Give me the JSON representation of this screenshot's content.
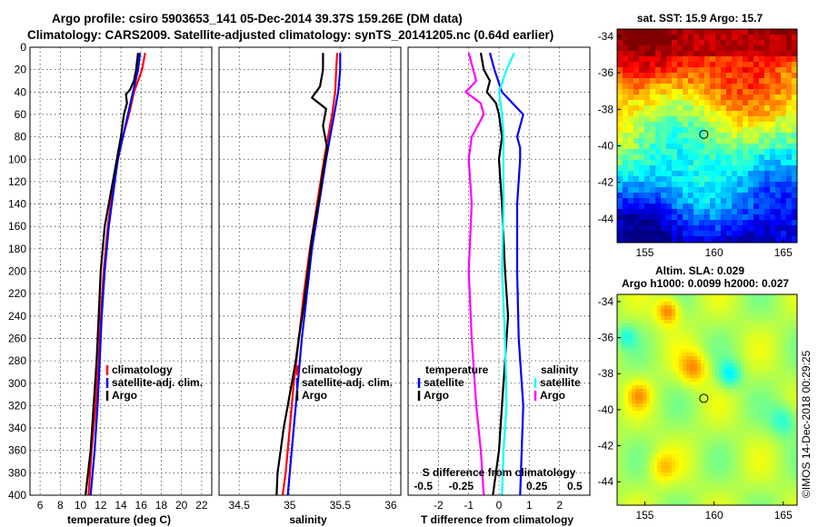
{
  "title": {
    "line1": "Argo profile: csiro 5903653_141 05-Dec-2014 39.37S 159.26E (DM data)",
    "line2": "Climatology: CARS2009. Satellite-adjusted climatology: synTS_20141205.nc (0.64d earlier)"
  },
  "watermark": "©IMOS 14-Dec-2018 00:29:25",
  "colors": {
    "climatology": "#ff0000",
    "satellite": "#0000ff",
    "argo": "#000000",
    "sat_s": "#00ffff",
    "argo_s": "#ff00ff"
  },
  "chart_data": [
    {
      "type": "line",
      "id": "temperature",
      "xlabel": "temperature (deg C)",
      "ylabel": "",
      "xlim": [
        5,
        23
      ],
      "ylim": [
        0,
        400
      ],
      "yreversed": true,
      "xticks": [
        6,
        8,
        10,
        12,
        14,
        16,
        18,
        20,
        22
      ],
      "xtick_labels": [
        "6",
        "8",
        "10",
        "12",
        "14",
        "16",
        "18",
        "20",
        "22"
      ],
      "yticks": [
        0,
        20,
        40,
        60,
        80,
        100,
        120,
        140,
        160,
        180,
        200,
        220,
        240,
        260,
        280,
        300,
        320,
        340,
        360,
        380,
        400
      ],
      "ytick_labels": [
        "0",
        "20",
        "40",
        "60",
        "80",
        "100",
        "120",
        "140",
        "160",
        "180",
        "200",
        "220",
        "240",
        "260",
        "280",
        "300",
        "320",
        "340",
        "360",
        "380",
        "400"
      ],
      "grid": true,
      "legend": {
        "placement": "lower-middle",
        "entries": [
          "climatology",
          "satellite-adj. clim.",
          "Argo"
        ]
      },
      "series": [
        {
          "name": "climatology",
          "color": "#ff0000",
          "depth": [
            5,
            20,
            40,
            60,
            80,
            100,
            120,
            140,
            160,
            200,
            240,
            280,
            320,
            360,
            400
          ],
          "values": [
            16.4,
            16.1,
            15.3,
            14.8,
            14.2,
            13.7,
            13.3,
            13.0,
            12.7,
            12.3,
            12.0,
            11.8,
            11.5,
            11.1,
            10.8
          ]
        },
        {
          "name": "satellite-adj. clim.",
          "color": "#0000ff",
          "depth": [
            5,
            20,
            40,
            60,
            80,
            100,
            120,
            140,
            160,
            200,
            240,
            280,
            320,
            360,
            400
          ],
          "values": [
            15.9,
            15.7,
            15.2,
            14.7,
            14.2,
            13.7,
            13.4,
            13.1,
            12.8,
            12.4,
            12.1,
            11.9,
            11.7,
            11.4,
            11.0
          ]
        },
        {
          "name": "Argo",
          "color": "#000000",
          "depth": [
            5,
            20,
            30,
            38,
            42,
            50,
            60,
            80,
            100,
            120,
            140,
            160,
            200,
            240,
            280,
            320,
            360,
            400
          ],
          "values": [
            15.7,
            15.5,
            15.3,
            14.9,
            14.5,
            14.6,
            14.3,
            14.0,
            13.6,
            13.2,
            12.8,
            12.4,
            12.0,
            11.8,
            11.6,
            11.3,
            11.0,
            10.5
          ]
        }
      ]
    },
    {
      "type": "line",
      "id": "salinity",
      "xlabel": "salinity",
      "ylabel": "",
      "xlim": [
        34.3,
        36.1
      ],
      "ylim": [
        0,
        400
      ],
      "yreversed": true,
      "xticks": [
        34.5,
        35,
        35.5,
        36
      ],
      "xtick_labels": [
        "34.5",
        "35",
        "35.5",
        "36"
      ],
      "grid": true,
      "legend": {
        "placement": "lower-middle",
        "entries": [
          "climatology",
          "satellite-adj. clim.",
          "Argo"
        ]
      },
      "series": [
        {
          "name": "climatology",
          "color": "#ff0000",
          "depth": [
            5,
            20,
            40,
            60,
            80,
            100,
            140,
            180,
            220,
            260,
            300,
            340,
            380,
            400
          ],
          "values": [
            35.47,
            35.46,
            35.45,
            35.42,
            35.38,
            35.34,
            35.27,
            35.2,
            35.14,
            35.09,
            35.04,
            35.0,
            34.96,
            34.93
          ]
        },
        {
          "name": "satellite-adj. clim.",
          "color": "#0000ff",
          "depth": [
            5,
            20,
            40,
            60,
            80,
            100,
            140,
            180,
            220,
            260,
            300,
            340,
            380,
            400
          ],
          "values": [
            35.5,
            35.5,
            35.48,
            35.44,
            35.4,
            35.36,
            35.29,
            35.22,
            35.17,
            35.12,
            35.08,
            35.04,
            35.0,
            34.98
          ]
        },
        {
          "name": "Argo",
          "color": "#000000",
          "depth": [
            5,
            20,
            35,
            45,
            55,
            70,
            90,
            110,
            130,
            150,
            170,
            200,
            230,
            260,
            280,
            300,
            320,
            340,
            360,
            380,
            400
          ],
          "values": [
            35.33,
            35.33,
            35.3,
            35.22,
            35.36,
            35.33,
            35.37,
            35.33,
            35.3,
            35.26,
            35.22,
            35.18,
            35.14,
            35.09,
            35.06,
            35.02,
            34.98,
            34.94,
            34.91,
            34.88,
            34.87
          ]
        }
      ]
    },
    {
      "type": "line",
      "id": "difference",
      "xlabel": "T difference from climatology",
      "xlabel_top": "S difference from climatology",
      "xlim": [
        -3,
        3
      ],
      "ylim": [
        0,
        400
      ],
      "yreversed": true,
      "xticks": [
        -2,
        -1,
        0,
        1,
        2
      ],
      "xtick_labels": [
        "-2",
        "-1",
        "0",
        "1",
        "2"
      ],
      "s_xlim": [
        -0.6,
        0.6
      ],
      "s_xticks": [
        -0.5,
        -0.25,
        0.25,
        0.5
      ],
      "s_xtick_labels": [
        "-0.5",
        "-0.25",
        "0.25",
        "0.5"
      ],
      "grid": true,
      "legend_t": {
        "placement": "lower-left",
        "header": "temperature",
        "entries": [
          "satellite",
          "Argo"
        ]
      },
      "legend_s": {
        "placement": "lower-right",
        "header": "salinity",
        "entries": [
          "satellite",
          "Argo"
        ]
      },
      "series": [
        {
          "name": "temperature satellite",
          "color": "#0000ff",
          "depth": [
            5,
            20,
            40,
            60,
            80,
            90,
            100,
            140,
            200,
            260,
            320,
            360,
            400
          ],
          "values": [
            -0.3,
            -0.15,
            0.1,
            0.8,
            0.6,
            0.7,
            0.7,
            0.6,
            0.6,
            0.65,
            0.8,
            0.75,
            0.7
          ]
        },
        {
          "name": "temperature Argo",
          "color": "#000000",
          "depth": [
            5,
            20,
            30,
            40,
            50,
            60,
            80,
            100,
            140,
            200,
            240,
            280,
            320,
            360,
            400
          ],
          "values": [
            -0.6,
            -0.5,
            -0.3,
            -0.4,
            -0.1,
            0.0,
            0.1,
            0.0,
            0.1,
            0.2,
            0.3,
            0.2,
            0.1,
            0.0,
            -0.2
          ]
        },
        {
          "name": "salinity satellite",
          "color": "#00ffff",
          "depth": [
            5,
            20,
            40,
            60,
            80,
            100,
            140,
            200,
            260,
            320,
            360,
            400
          ],
          "values": [
            0.1,
            0.05,
            0.0,
            0.02,
            0.03,
            0.03,
            0.03,
            0.02,
            0.04,
            0.05,
            0.03,
            0.02
          ]
        },
        {
          "name": "salinity Argo",
          "color": "#ff00ff",
          "depth": [
            5,
            15,
            30,
            40,
            50,
            60,
            80,
            100,
            140,
            200,
            260,
            320,
            360,
            400
          ],
          "values": [
            -0.2,
            -0.18,
            -0.15,
            -0.22,
            -0.12,
            -0.1,
            -0.18,
            -0.2,
            -0.18,
            -0.2,
            -0.18,
            -0.15,
            -0.12,
            -0.1
          ]
        }
      ]
    },
    {
      "type": "heatmap",
      "id": "sst-map",
      "title": "sat. SST: 15.9 Argo: 15.7",
      "xlim": [
        153,
        166
      ],
      "ylim": [
        -45.3,
        -33.6
      ],
      "xticks": [
        155,
        160,
        165
      ],
      "xtick_labels": [
        "155",
        "160",
        "165"
      ],
      "yticks": [
        -34,
        -36,
        -38,
        -40,
        -42,
        -44
      ],
      "ytick_labels": [
        "-34",
        "-36",
        "-38",
        "-40",
        "-42",
        "-44"
      ],
      "marker": {
        "lon": 159.26,
        "lat": -39.37
      }
    },
    {
      "type": "heatmap",
      "id": "sla-map",
      "title": "Altim. SLA: 0.029",
      "subtitle": "Argo h1000: 0.0099 h2000: 0.027",
      "xlim": [
        153,
        166
      ],
      "ylim": [
        -45.3,
        -33.6
      ],
      "xticks": [
        155,
        160,
        165
      ],
      "xtick_labels": [
        "155",
        "160",
        "165"
      ],
      "yticks": [
        -34,
        -36,
        -38,
        -40,
        -42,
        -44
      ],
      "ytick_labels": [
        "-34",
        "-36",
        "-38",
        "-40",
        "-42",
        "-44"
      ],
      "marker": {
        "lon": 159.26,
        "lat": -39.37
      }
    }
  ]
}
